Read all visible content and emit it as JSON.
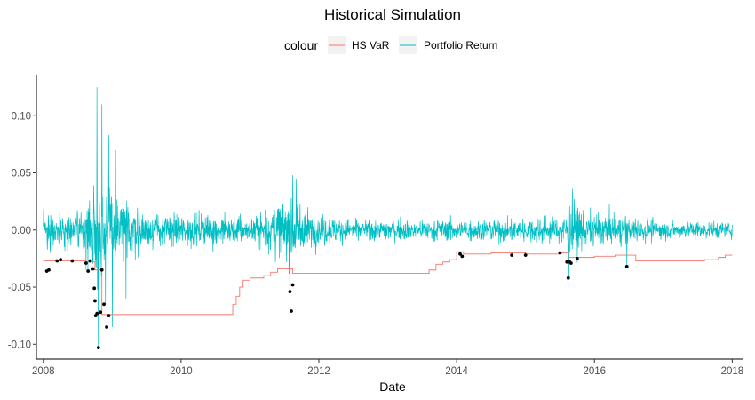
{
  "chart_data": {
    "type": "line",
    "title": "Historical Simulation",
    "xlabel": "Date",
    "ylabel": "",
    "legend": {
      "title": "colour",
      "placement": "top",
      "entries": [
        {
          "name": "HS VaR",
          "color": "#F8766D"
        },
        {
          "name": "Portfolio Return",
          "color": "#00BFC4"
        }
      ]
    },
    "xlim": [
      2007.9,
      2018.15
    ],
    "ylim": [
      -0.113,
      0.136
    ],
    "x_ticks": [
      {
        "value": 2008,
        "label": "2008"
      },
      {
        "value": 2010,
        "label": "2010"
      },
      {
        "value": 2012,
        "label": "2012"
      },
      {
        "value": 2014,
        "label": "2014"
      },
      {
        "value": 2016,
        "label": "2016"
      },
      {
        "value": 2018,
        "label": "2018"
      }
    ],
    "y_ticks": [
      {
        "value": 0.1,
        "label": "0.10"
      },
      {
        "value": 0.05,
        "label": "0.05"
      },
      {
        "value": 0.0,
        "label": "0.00"
      },
      {
        "value": -0.05,
        "label": "-0.05"
      },
      {
        "value": -0.1,
        "label": "-0.10"
      }
    ],
    "grid": false,
    "series": [
      {
        "name": "HS VaR",
        "color": "#F8766D",
        "step": true,
        "x": [
          2008.0,
          2008.62,
          2008.75,
          2008.85,
          2009.5,
          2010.5,
          2010.7,
          2010.75,
          2010.8,
          2010.85,
          2010.9,
          2011.0,
          2011.2,
          2011.3,
          2011.4,
          2011.6,
          2011.62,
          2012.0,
          2013.0,
          2013.6,
          2013.7,
          2013.8,
          2013.9,
          2014.0,
          2014.1,
          2014.5,
          2015.0,
          2015.5,
          2015.62,
          2015.7,
          2016.0,
          2016.3,
          2016.5,
          2016.6,
          2017.0,
          2017.5,
          2017.6,
          2017.8,
          2017.9,
          2018.0
        ],
        "values": [
          -0.027,
          -0.028,
          -0.035,
          -0.074,
          -0.074,
          -0.074,
          -0.074,
          -0.065,
          -0.058,
          -0.05,
          -0.044,
          -0.042,
          -0.04,
          -0.037,
          -0.034,
          -0.034,
          -0.038,
          -0.038,
          -0.038,
          -0.035,
          -0.03,
          -0.028,
          -0.026,
          -0.019,
          -0.021,
          -0.02,
          -0.021,
          -0.02,
          -0.024,
          -0.024,
          -0.023,
          -0.022,
          -0.022,
          -0.027,
          -0.027,
          -0.027,
          -0.026,
          -0.024,
          -0.022,
          -0.022
        ]
      },
      {
        "name": "Portfolio Return",
        "color": "#00BFC4",
        "x_start": 2008.0,
        "x_end": 2018.0,
        "n_points": 2518,
        "volatility_profile": [
          {
            "x": 2008.0,
            "sd": 0.011
          },
          {
            "x": 2008.6,
            "sd": 0.013
          },
          {
            "x": 2008.75,
            "sd": 0.032
          },
          {
            "x": 2009.0,
            "sd": 0.028
          },
          {
            "x": 2009.3,
            "sd": 0.015
          },
          {
            "x": 2009.6,
            "sd": 0.01
          },
          {
            "x": 2010.3,
            "sd": 0.01
          },
          {
            "x": 2010.5,
            "sd": 0.012
          },
          {
            "x": 2011.0,
            "sd": 0.009
          },
          {
            "x": 2011.55,
            "sd": 0.021
          },
          {
            "x": 2011.9,
            "sd": 0.011
          },
          {
            "x": 2012.5,
            "sd": 0.007
          },
          {
            "x": 2014.0,
            "sd": 0.007
          },
          {
            "x": 2015.55,
            "sd": 0.009
          },
          {
            "x": 2015.65,
            "sd": 0.017
          },
          {
            "x": 2016.0,
            "sd": 0.011
          },
          {
            "x": 2016.5,
            "sd": 0.009
          },
          {
            "x": 2017.0,
            "sd": 0.006
          },
          {
            "x": 2018.0,
            "sd": 0.005
          }
        ],
        "spikes": [
          {
            "x": 2008.62,
            "y": -0.035
          },
          {
            "x": 2008.78,
            "y": 0.125
          },
          {
            "x": 2008.8,
            "y": -0.103
          },
          {
            "x": 2008.85,
            "y": 0.11
          },
          {
            "x": 2008.9,
            "y": -0.065
          },
          {
            "x": 2008.95,
            "y": 0.083
          },
          {
            "x": 2009.0,
            "y": -0.085
          },
          {
            "x": 2009.05,
            "y": 0.07
          },
          {
            "x": 2009.2,
            "y": -0.06
          },
          {
            "x": 2011.58,
            "y": -0.071
          },
          {
            "x": 2011.62,
            "y": 0.048
          },
          {
            "x": 2011.67,
            "y": 0.045
          },
          {
            "x": 2015.63,
            "y": -0.042
          },
          {
            "x": 2015.68,
            "y": 0.036
          },
          {
            "x": 2016.47,
            "y": -0.032
          }
        ]
      }
    ],
    "exceedances": {
      "color": "#000000",
      "x": [
        2008.05,
        2008.08,
        2008.2,
        2008.25,
        2008.42,
        2008.62,
        2008.65,
        2008.68,
        2008.72,
        2008.74,
        2008.75,
        2008.76,
        2008.78,
        2008.8,
        2008.83,
        2008.85,
        2008.88,
        2008.92,
        2008.95,
        2011.58,
        2011.6,
        2011.62,
        2014.05,
        2014.08,
        2014.8,
        2015.0,
        2015.5,
        2015.6,
        2015.62,
        2015.64,
        2015.66,
        2015.75,
        2016.47
      ],
      "y": [
        -0.036,
        -0.035,
        -0.027,
        -0.026,
        -0.027,
        -0.029,
        -0.036,
        -0.027,
        -0.034,
        -0.051,
        -0.062,
        -0.075,
        -0.073,
        -0.103,
        -0.072,
        -0.035,
        -0.065,
        -0.085,
        -0.075,
        -0.054,
        -0.071,
        -0.048,
        -0.021,
        -0.023,
        -0.022,
        -0.022,
        -0.02,
        -0.028,
        -0.042,
        -0.028,
        -0.029,
        -0.025,
        -0.032
      ]
    }
  }
}
